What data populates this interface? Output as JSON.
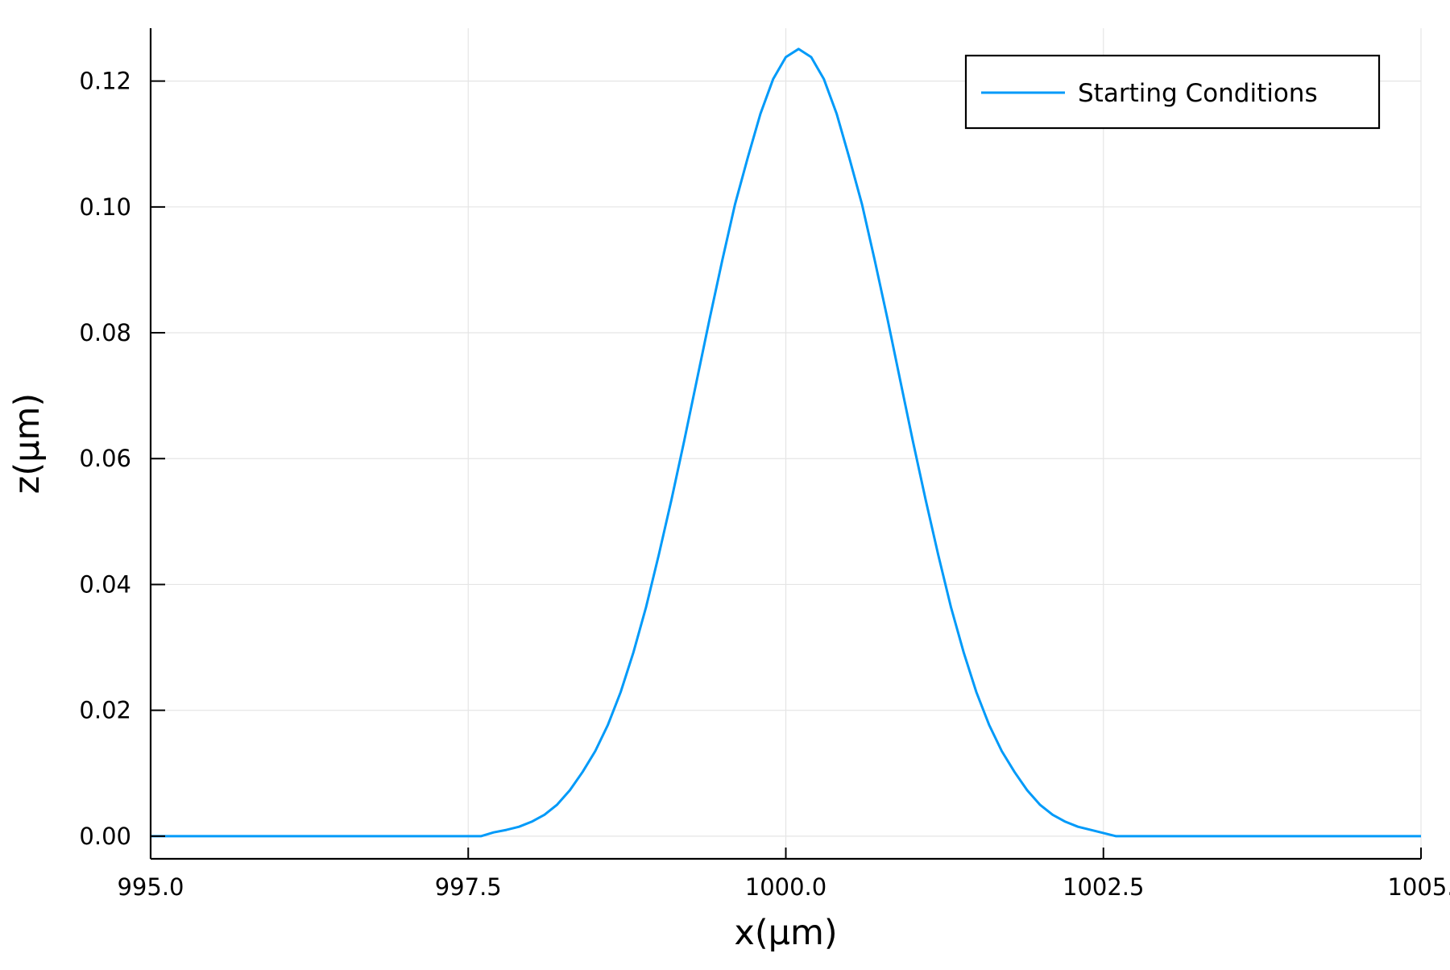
{
  "chart_data": {
    "type": "line",
    "title": "",
    "xlabel": "x(μm)",
    "ylabel": "z(μm)",
    "xlim": [
      995.0,
      1005.0
    ],
    "ylim": [
      -0.0036,
      0.1284
    ],
    "x_ticks": [
      995.0,
      997.5,
      1000.0,
      1002.5,
      1005.0
    ],
    "x_tick_labels": [
      "995.0",
      "997.5",
      "1000.0",
      "1002.5",
      "1005."
    ],
    "y_ticks": [
      0.0,
      0.02,
      0.04,
      0.06,
      0.08,
      0.1,
      0.12
    ],
    "y_tick_labels": [
      "0.00",
      "0.02",
      "0.04",
      "0.06",
      "0.08",
      "0.10",
      "0.12"
    ],
    "grid": true,
    "legend_position": "top-right",
    "series": [
      {
        "name": "Starting Conditions",
        "color": "#009af9",
        "x": [
          995.0,
          995.1,
          997.4,
          997.6,
          997.7,
          997.8,
          997.9,
          998.0,
          998.1,
          998.2,
          998.3,
          998.4,
          998.5,
          998.6,
          998.7,
          998.8,
          998.9,
          999.0,
          999.1,
          999.2,
          999.3,
          999.4,
          999.5,
          999.6,
          999.7,
          999.8,
          999.9,
          1000.0,
          1000.1,
          1000.2,
          1000.3,
          1000.4,
          1000.5,
          1000.6,
          1000.7,
          1000.8,
          1000.9,
          1001.0,
          1001.1,
          1001.2,
          1001.3,
          1001.4,
          1001.5,
          1001.6,
          1001.7,
          1001.8,
          1001.9,
          1002.0,
          1002.1,
          1002.2,
          1002.3,
          1002.4,
          1002.6,
          1004.9,
          1005.0
        ],
        "y": [
          0.0,
          0.0,
          0.0,
          0.0,
          0.0006,
          0.001,
          0.0015,
          0.0023,
          0.0034,
          0.005,
          0.0073,
          0.0102,
          0.0135,
          0.0177,
          0.0229,
          0.0292,
          0.0364,
          0.0447,
          0.0535,
          0.0628,
          0.0725,
          0.0822,
          0.0915,
          0.1004,
          0.1078,
          0.1148,
          0.1203,
          0.1238,
          0.1251,
          0.1238,
          0.1203,
          0.1148,
          0.1078,
          0.1004,
          0.0915,
          0.0822,
          0.0725,
          0.0628,
          0.0535,
          0.0447,
          0.0364,
          0.0292,
          0.0229,
          0.0177,
          0.0135,
          0.0102,
          0.0073,
          0.005,
          0.0034,
          0.0023,
          0.0015,
          0.001,
          0.0,
          0.0,
          0.0
        ]
      }
    ]
  }
}
